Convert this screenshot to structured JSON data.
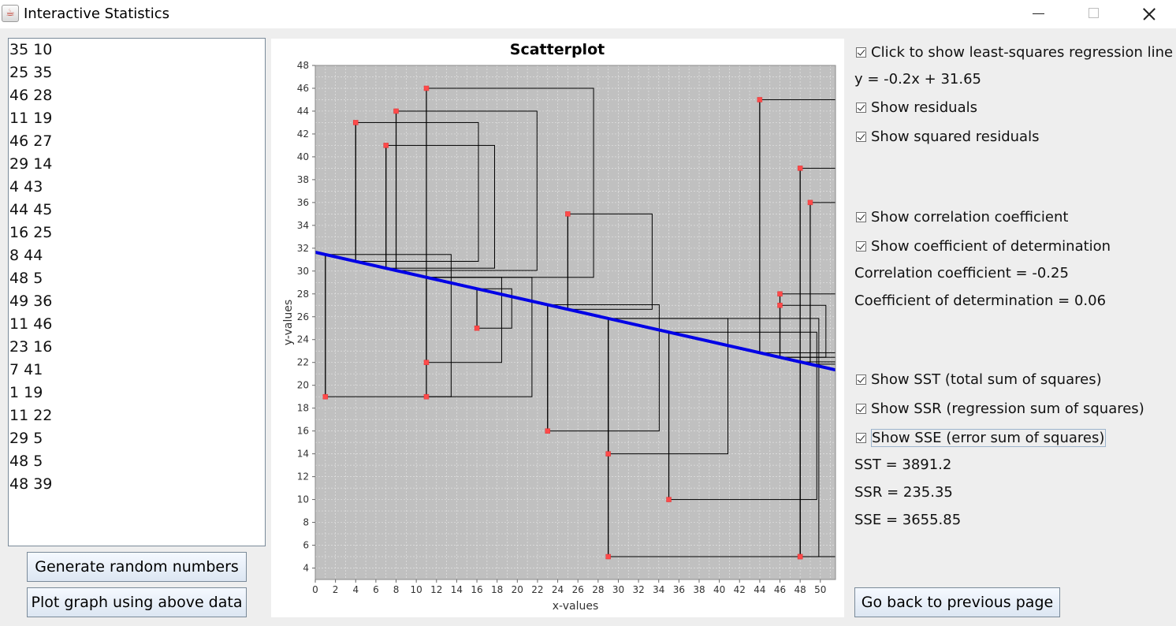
{
  "window": {
    "title": "Interactive Statistics",
    "app_icon": "java-cup-icon"
  },
  "data_entry": {
    "lines": [
      "35 10",
      "25 35",
      "46 28",
      "11 19",
      "46 27",
      "29 14",
      "4 43",
      "44 45",
      "16 25",
      "8 44",
      "48 5",
      "49 36",
      "11 46",
      "23 16",
      "7 41",
      "1 19",
      "11 22",
      "29 5",
      "48 5",
      "48 39"
    ]
  },
  "buttons": {
    "generate": "Generate random numbers",
    "plot": "Plot graph using above data",
    "back": "Go back to previous page"
  },
  "options": {
    "regression_line": "Click to show least-squares regression line",
    "equation": "y = -0.2x + 31.65",
    "residuals": "Show residuals",
    "squared_residuals": "Show squared residuals",
    "correlation": "Show correlation coefficient",
    "determination": "Show coefficient of determination",
    "correlation_value": "Correlation coefficient = -0.25",
    "determination_value": "Coefficient of determination = 0.06",
    "sst": "Show SST (total sum of squares)",
    "ssr": "Show SSR (regression sum of squares)",
    "sse": "Show SSE (error sum of squares)",
    "sst_value": "SST = 3891.2",
    "ssr_value": "SSR = 235.35",
    "sse_value": "SSE = 3655.85"
  },
  "chart_data": {
    "type": "scatter",
    "title": "Scatterplot",
    "xlabel": "x-values",
    "ylabel": "y-values",
    "xlim": [
      0,
      51.5
    ],
    "ylim": [
      3,
      48
    ],
    "x_ticks": [
      0,
      2,
      4,
      6,
      8,
      10,
      12,
      14,
      16,
      18,
      20,
      22,
      24,
      26,
      28,
      30,
      32,
      34,
      36,
      38,
      40,
      42,
      44,
      46,
      48,
      50
    ],
    "y_ticks": [
      4,
      6,
      8,
      10,
      12,
      14,
      16,
      18,
      20,
      22,
      24,
      26,
      28,
      30,
      32,
      34,
      36,
      38,
      40,
      42,
      44,
      46,
      48
    ],
    "points": [
      [
        35,
        10
      ],
      [
        25,
        35
      ],
      [
        46,
        28
      ],
      [
        11,
        19
      ],
      [
        46,
        27
      ],
      [
        29,
        14
      ],
      [
        4,
        43
      ],
      [
        44,
        45
      ],
      [
        16,
        25
      ],
      [
        8,
        44
      ],
      [
        48,
        5
      ],
      [
        49,
        36
      ],
      [
        11,
        46
      ],
      [
        23,
        16
      ],
      [
        7,
        41
      ],
      [
        1,
        19
      ],
      [
        11,
        22
      ],
      [
        29,
        5
      ],
      [
        48,
        5
      ],
      [
        48,
        39
      ]
    ],
    "regression": {
      "slope": -0.2,
      "intercept": 31.65
    },
    "grid": true,
    "show_residuals": true,
    "show_squared_residuals": true,
    "colors": {
      "plot_bg": "#c0c0c0",
      "grid": "#e2e2e2",
      "point": "#ff4a4a",
      "regression_line": "#0000e6",
      "residual": "#000000"
    }
  }
}
